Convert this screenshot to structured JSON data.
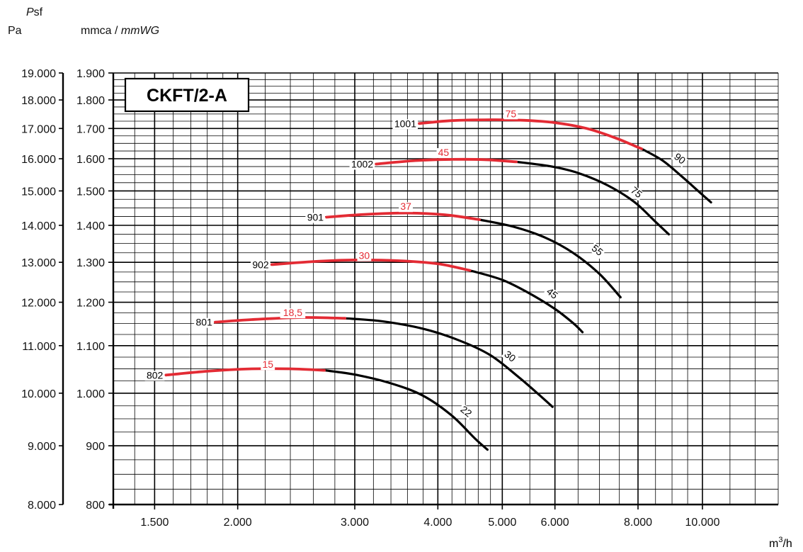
{
  "header": {
    "psf_italic": "P",
    "psf_rest": "sf",
    "pa_unit": "Pa",
    "mm_unit": "mmca / ",
    "mm_unit_italic": "mmWG"
  },
  "chart_data": {
    "type": "line",
    "title": "CKFT/2-A",
    "x_scale": "log",
    "y_scale": "log",
    "xlim": [
      1300,
      13000
    ],
    "ylim_mmca": [
      800,
      1900
    ],
    "xlabel_base": "m",
    "xlabel_sup": "3",
    "xlabel_suffix": "/h",
    "x_ticks": [
      {
        "value": 1500,
        "label": "1.500"
      },
      {
        "value": 2000,
        "label": "2.000"
      },
      {
        "value": 3000,
        "label": "3.000"
      },
      {
        "value": 4000,
        "label": "4.000"
      },
      {
        "value": 5000,
        "label": "5.000"
      },
      {
        "value": 6000,
        "label": "6.000"
      },
      {
        "value": 8000,
        "label": "8.000"
      },
      {
        "value": 10000,
        "label": "10.000"
      }
    ],
    "y_ticks_mmca": [
      {
        "value": 800,
        "label": "800"
      },
      {
        "value": 900,
        "label": "900"
      },
      {
        "value": 1000,
        "label": "1.000"
      },
      {
        "value": 1100,
        "label": "1.100"
      },
      {
        "value": 1200,
        "label": "1.200"
      },
      {
        "value": 1300,
        "label": "1.300"
      },
      {
        "value": 1400,
        "label": "1.400"
      },
      {
        "value": 1500,
        "label": "1.500"
      },
      {
        "value": 1600,
        "label": "1.600"
      },
      {
        "value": 1700,
        "label": "1.700"
      },
      {
        "value": 1800,
        "label": "1.800"
      },
      {
        "value": 1900,
        "label": "1.900"
      }
    ],
    "y_ticks_pa": [
      {
        "value": 8000,
        "label": "8.000"
      },
      {
        "value": 9000,
        "label": "9.000"
      },
      {
        "value": 10000,
        "label": "10.000"
      },
      {
        "value": 11000,
        "label": "11.000"
      },
      {
        "value": 12000,
        "label": "12.000"
      },
      {
        "value": 13000,
        "label": "13.000"
      },
      {
        "value": 14000,
        "label": "14.000"
      },
      {
        "value": 15000,
        "label": "15.000"
      },
      {
        "value": 16000,
        "label": "16.000"
      },
      {
        "value": 17000,
        "label": "17.000"
      },
      {
        "value": 18000,
        "label": "18.000"
      },
      {
        "value": 19000,
        "label": "19.000"
      }
    ],
    "x_grid": [
      1300,
      1400,
      1500,
      1600,
      1700,
      1800,
      1900,
      2000,
      2200,
      2400,
      2600,
      2800,
      3000,
      3200,
      3400,
      3600,
      3800,
      4000,
      4200,
      4400,
      4600,
      4800,
      5000,
      5500,
      6000,
      6500,
      7000,
      7500,
      8000,
      8500,
      9000,
      9500,
      10000,
      11000,
      12000,
      13000
    ],
    "y_grid_mmca": [
      800,
      825,
      850,
      875,
      900,
      925,
      950,
      975,
      1000,
      1025,
      1050,
      1075,
      1100,
      1125,
      1150,
      1175,
      1200,
      1225,
      1250,
      1275,
      1300,
      1325,
      1350,
      1375,
      1400,
      1425,
      1450,
      1475,
      1500,
      1525,
      1550,
      1575,
      1600,
      1625,
      1650,
      1675,
      1700,
      1725,
      1750,
      1775,
      1800,
      1825,
      1850,
      1875,
      1900
    ],
    "series": [
      {
        "name": "802",
        "power_label": "15",
        "end_power_label": "22",
        "label_at": [
          2220,
          1052
        ],
        "end_label_at": [
          4380,
          959
        ],
        "red": [
          [
            1560,
            1037
          ],
          [
            1800,
            1045
          ],
          [
            2100,
            1050
          ],
          [
            2400,
            1050
          ],
          [
            2700,
            1047
          ]
        ],
        "black": [
          [
            2700,
            1047
          ],
          [
            3000,
            1038
          ],
          [
            3400,
            1020
          ],
          [
            3800,
            995
          ],
          [
            4200,
            956
          ],
          [
            4550,
            913
          ],
          [
            4750,
            893
          ]
        ]
      },
      {
        "name": "801",
        "power_label": "18,5",
        "end_power_label": "30",
        "label_at": [
          2420,
          1167
        ],
        "end_label_at": [
          5100,
          1071
        ],
        "red": [
          [
            1850,
            1153
          ],
          [
            2100,
            1159
          ],
          [
            2500,
            1164
          ],
          [
            2900,
            1162
          ]
        ],
        "black": [
          [
            2900,
            1162
          ],
          [
            3300,
            1155
          ],
          [
            3800,
            1138
          ],
          [
            4300,
            1112
          ],
          [
            4800,
            1079
          ],
          [
            5300,
            1032
          ],
          [
            5700,
            995
          ],
          [
            5950,
            973
          ]
        ]
      },
      {
        "name": "902",
        "power_label": "30",
        "end_power_label": "45",
        "label_at": [
          3100,
          1309
        ],
        "end_label_at": [
          5900,
          1215
        ],
        "red": [
          [
            2250,
            1294
          ],
          [
            2600,
            1302
          ],
          [
            3000,
            1306
          ],
          [
            3500,
            1304
          ],
          [
            4000,
            1296
          ],
          [
            4470,
            1279
          ]
        ],
        "black": [
          [
            4470,
            1279
          ],
          [
            5000,
            1255
          ],
          [
            5500,
            1221
          ],
          [
            6000,
            1184
          ],
          [
            6400,
            1150
          ],
          [
            6600,
            1130
          ]
        ]
      },
      {
        "name": "901",
        "power_label": "37",
        "end_power_label": "55",
        "label_at": [
          3580,
          1444
        ],
        "end_label_at": [
          6900,
          1325
        ],
        "red": [
          [
            2720,
            1423
          ],
          [
            3100,
            1431
          ],
          [
            3600,
            1435
          ],
          [
            4100,
            1430
          ],
          [
            4620,
            1416
          ]
        ],
        "black": [
          [
            4620,
            1416
          ],
          [
            5200,
            1396
          ],
          [
            5800,
            1366
          ],
          [
            6400,
            1324
          ],
          [
            7000,
            1270
          ],
          [
            7530,
            1212
          ]
        ]
      },
      {
        "name": "1002",
        "power_label": "45",
        "end_power_label": "75",
        "label_at": [
          4080,
          1609
        ],
        "end_label_at": [
          7900,
          1488
        ],
        "red": [
          [
            3230,
            1583
          ],
          [
            3700,
            1594
          ],
          [
            4200,
            1598
          ],
          [
            4700,
            1597
          ],
          [
            5250,
            1590
          ]
        ],
        "black": [
          [
            5250,
            1590
          ],
          [
            5900,
            1576
          ],
          [
            6500,
            1555
          ],
          [
            7200,
            1517
          ],
          [
            7900,
            1467
          ],
          [
            8500,
            1410
          ],
          [
            8900,
            1375
          ]
        ]
      },
      {
        "name": "1001",
        "power_label": "75",
        "end_power_label": "90",
        "label_at": [
          5150,
          1739
        ],
        "end_label_at": [
          9180,
          1592
        ],
        "red": [
          [
            3750,
            1717
          ],
          [
            4200,
            1727
          ],
          [
            4800,
            1730
          ],
          [
            5400,
            1728
          ],
          [
            6000,
            1720
          ],
          [
            6700,
            1700
          ],
          [
            7400,
            1668
          ],
          [
            8100,
            1632
          ]
        ],
        "black": [
          [
            8100,
            1632
          ],
          [
            8700,
            1595
          ],
          [
            9300,
            1545
          ],
          [
            9900,
            1496
          ],
          [
            10300,
            1466
          ]
        ]
      }
    ]
  }
}
